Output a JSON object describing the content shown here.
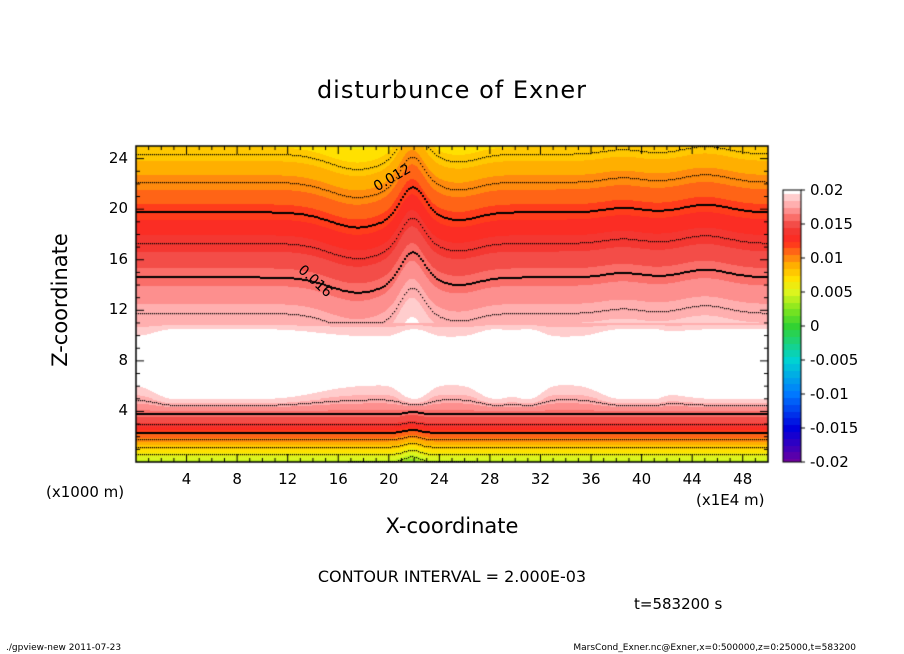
{
  "chart_data": {
    "type": "contour",
    "title": "disturbunce of Exner",
    "xlabel": "X-coordinate",
    "ylabel": "Z-coordinate",
    "x_unit": "(x1E4 m)",
    "y_unit": "(x1000 m)",
    "xlim": [
      0,
      50
    ],
    "ylim": [
      0,
      25
    ],
    "xticks": [
      4,
      8,
      12,
      16,
      20,
      24,
      28,
      32,
      36,
      40,
      44,
      48
    ],
    "yticks": [
      4,
      8,
      12,
      16,
      20,
      24
    ],
    "colorbar": {
      "labels": [
        "0.02",
        "0.015",
        "0.01",
        "0.005",
        "0",
        "-0.005",
        "-0.01",
        "-0.015",
        "-0.02"
      ],
      "min": -0.02,
      "max": 0.02
    },
    "contour_labels": [
      "0.012",
      "0.016"
    ],
    "contour_interval_text": "CONTOUR INTERVAL = 2.000E-03",
    "time_text": "t=583200 s"
  },
  "footer": {
    "left": "./gpview-new   2011-07-23",
    "right": "MarsCond_Exner.nc@Exner,x=0:500000,z=0:25000,t=583200"
  }
}
